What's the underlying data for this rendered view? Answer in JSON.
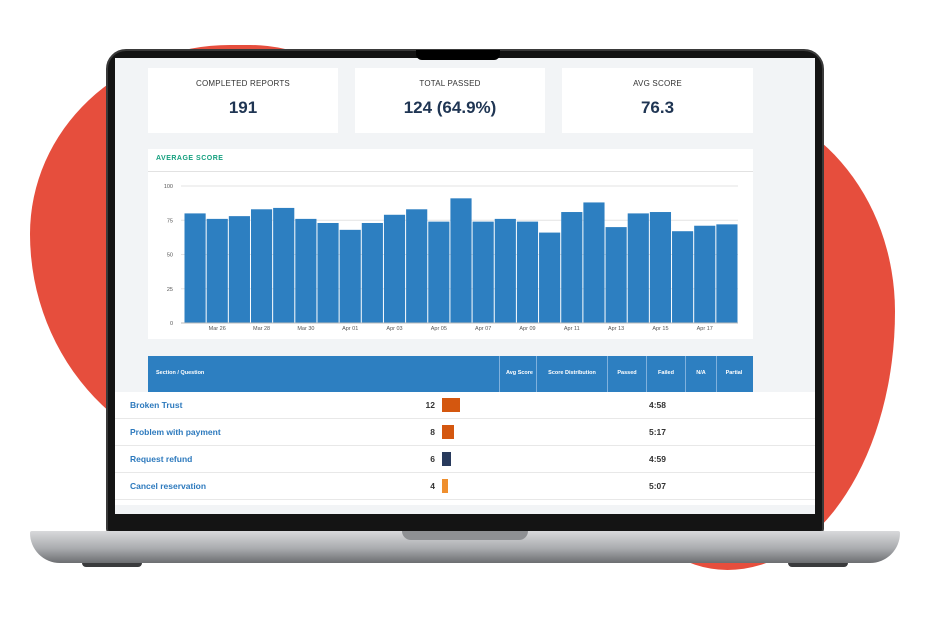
{
  "cards": [
    {
      "label": "COMPLETED REPORTS",
      "value": "191"
    },
    {
      "label": "TOTAL PASSED",
      "value": "124 (64.9%)"
    },
    {
      "label": "AVG SCORE",
      "value": "76.3"
    }
  ],
  "chart_data": {
    "type": "bar",
    "title": "AVERAGE SCORE",
    "xlabel": "",
    "ylabel": "",
    "ylim": [
      0,
      100
    ],
    "yticks": [
      "0",
      "25",
      "50",
      "75",
      "100"
    ],
    "xtick_labels": [
      "Mar 26",
      "Mar 28",
      "Mar 30",
      "Apr 01",
      "Apr 03",
      "Apr 05",
      "Apr 07",
      "Apr 09",
      "Apr 11",
      "Apr 13",
      "Apr 15",
      "Apr 17"
    ],
    "grid": true,
    "color": "#2d7fc1",
    "values": [
      80,
      76,
      78,
      83,
      84,
      76,
      73,
      68,
      73,
      79,
      83,
      74,
      91,
      74,
      76,
      74,
      66,
      81,
      88,
      70,
      80,
      81,
      67,
      71,
      72
    ]
  },
  "table": {
    "headers": {
      "section": "Section / Question",
      "avg_score": "Avg Score",
      "distribution": "Score Distribution",
      "passed": "Passed",
      "failed": "Failed",
      "na": "N/A",
      "partial": "Partial"
    },
    "rows": [
      {
        "name": "Broken Trust",
        "count": "12",
        "time": "4:58",
        "color": "#d4570f",
        "bar": 1.0
      },
      {
        "name": "Problem with payment",
        "count": "8",
        "time": "5:17",
        "color": "#d4570f",
        "bar": 0.67
      },
      {
        "name": "Request refund",
        "count": "6",
        "time": "4:59",
        "color": "#283a5c",
        "bar": 0.5
      },
      {
        "name": "Cancel reservation",
        "count": "4",
        "time": "5:07",
        "color": "#ef8f2e",
        "bar": 0.33
      }
    ]
  }
}
